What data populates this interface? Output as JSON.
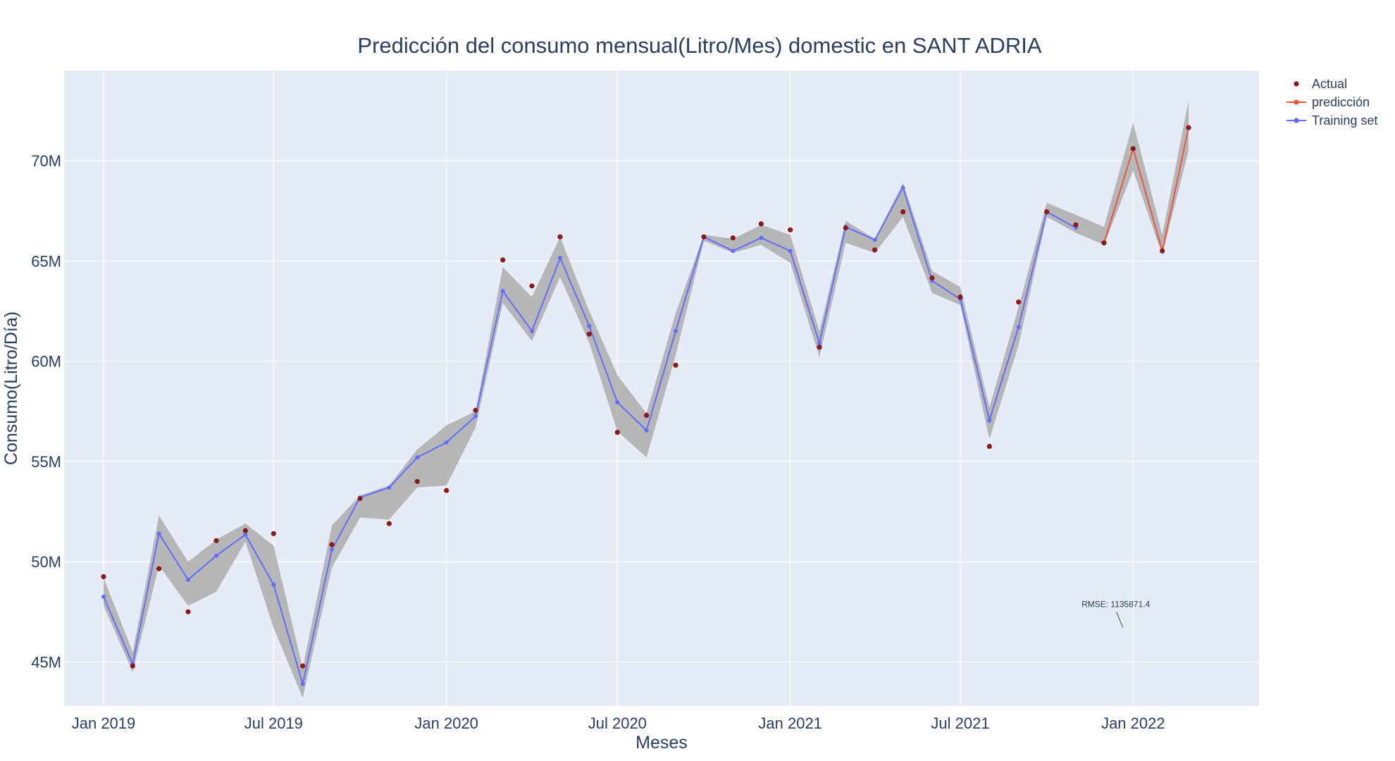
{
  "chart_data": {
    "type": "line",
    "title": "Predicción del consumo mensual(Litro/Mes) domestic en SANT ADRIA",
    "xlabel": "Meses",
    "ylabel": "Consumo(Litro/Día)",
    "x_tick_labels": [
      "Jan 2019",
      "Jul 2019",
      "Jan 2020",
      "Jul 2020",
      "Jan 2021",
      "Jul 2021",
      "Jan 2022"
    ],
    "y_tick_labels": [
      "45M",
      "50M",
      "55M",
      "60M",
      "65M",
      "70M"
    ],
    "y_ticks": [
      45000000,
      50000000,
      55000000,
      60000000,
      65000000,
      70000000
    ],
    "xlim": [
      "2018-11-20",
      "2022-05-15"
    ],
    "ylim": [
      42800000,
      74500000
    ],
    "grid": true,
    "legend_position": "top-right",
    "series": [
      {
        "name": "Actual",
        "mode": "markers",
        "color": "#8b1a1a",
        "x": [
          "2019-01-01",
          "2019-02-01",
          "2019-03-01",
          "2019-04-01",
          "2019-05-01",
          "2019-06-01",
          "2019-07-01",
          "2019-08-01",
          "2019-09-01",
          "2019-10-01",
          "2019-11-01",
          "2019-12-01",
          "2020-01-01",
          "2020-02-01",
          "2020-03-01",
          "2020-04-01",
          "2020-05-01",
          "2020-06-01",
          "2020-07-01",
          "2020-08-01",
          "2020-09-01",
          "2020-10-01",
          "2020-11-01",
          "2020-12-01",
          "2021-01-01",
          "2021-02-01",
          "2021-03-01",
          "2021-04-01",
          "2021-05-01",
          "2021-06-01",
          "2021-07-01",
          "2021-08-01",
          "2021-09-01",
          "2021-10-01",
          "2021-11-01",
          "2021-12-01",
          "2022-01-01",
          "2022-02-01",
          "2022-03-01"
        ],
        "y": [
          49250000,
          44800000,
          49650000,
          47500000,
          51050000,
          51550000,
          51400000,
          44800000,
          50850000,
          53150000,
          51900000,
          54000000,
          53550000,
          57550000,
          65050000,
          63750000,
          66200000,
          61350000,
          56450000,
          57300000,
          59800000,
          66200000,
          66150000,
          66850000,
          66550000,
          60700000,
          66650000,
          65550000,
          67450000,
          64150000,
          63200000,
          55750000,
          62950000,
          67450000,
          66800000,
          65900000,
          70600000,
          65500000,
          71650000
        ]
      },
      {
        "name": "predicción",
        "mode": "lines+markers",
        "color": "#ef553b",
        "x": [
          "2021-12-01",
          "2022-01-01",
          "2022-02-01",
          "2022-03-01"
        ],
        "y": [
          65900000,
          70600000,
          65500000,
          71650000
        ]
      },
      {
        "name": "Training set",
        "mode": "lines+markers",
        "color": "#636efa",
        "x": [
          "2019-01-01",
          "2019-02-01",
          "2019-03-01",
          "2019-04-01",
          "2019-05-01",
          "2019-06-01",
          "2019-07-01",
          "2019-08-01",
          "2019-09-01",
          "2019-10-01",
          "2019-11-01",
          "2019-12-01",
          "2020-01-01",
          "2020-02-01",
          "2020-03-01",
          "2020-04-01",
          "2020-05-01",
          "2020-06-01",
          "2020-07-01",
          "2020-08-01",
          "2020-09-01",
          "2020-10-01",
          "2020-11-01",
          "2020-12-01",
          "2021-01-01",
          "2021-02-01",
          "2021-03-01",
          "2021-04-01",
          "2021-05-01",
          "2021-06-01",
          "2021-07-01",
          "2021-08-01",
          "2021-09-01",
          "2021-10-01",
          "2021-11-01"
        ],
        "y": [
          48250000,
          44900000,
          51400000,
          49100000,
          50300000,
          51350000,
          48850000,
          43900000,
          50600000,
          53200000,
          53700000,
          55200000,
          55950000,
          57250000,
          63500000,
          61500000,
          65150000,
          61750000,
          57950000,
          56550000,
          61500000,
          66200000,
          65500000,
          66150000,
          65500000,
          60900000,
          66700000,
          66050000,
          68650000,
          64000000,
          63100000,
          57050000,
          61700000,
          67450000,
          66650000
        ]
      }
    ],
    "confidence_band": {
      "color": "#a9a9a9",
      "x": [
        "2019-01-01",
        "2019-02-01",
        "2019-03-01",
        "2019-04-01",
        "2019-05-01",
        "2019-06-01",
        "2019-07-01",
        "2019-08-01",
        "2019-09-01",
        "2019-10-01",
        "2019-11-01",
        "2019-12-01",
        "2020-01-01",
        "2020-02-01",
        "2020-03-01",
        "2020-04-01",
        "2020-05-01",
        "2020-06-01",
        "2020-07-01",
        "2020-08-01",
        "2020-09-01",
        "2020-10-01",
        "2020-11-01",
        "2020-12-01",
        "2021-01-01",
        "2021-02-01",
        "2021-03-01",
        "2021-04-01",
        "2021-05-01",
        "2021-06-01",
        "2021-07-01",
        "2021-08-01",
        "2021-09-01",
        "2021-10-01",
        "2021-11-01",
        "2021-12-01",
        "2022-01-01",
        "2022-02-01",
        "2022-03-01"
      ],
      "upper": [
        49200000,
        45500000,
        52300000,
        50000000,
        51100000,
        51900000,
        50800000,
        44700000,
        51800000,
        53300000,
        53800000,
        55600000,
        56800000,
        57500000,
        64700000,
        63200000,
        66200000,
        62500000,
        59300000,
        57400000,
        62400000,
        66300000,
        66100000,
        66800000,
        66300000,
        61500000,
        67000000,
        66100000,
        68900000,
        64500000,
        63700000,
        57700000,
        62700000,
        67900000,
        67300000,
        66700000,
        71900000,
        66300000,
        73000000
      ],
      "lower": [
        47800000,
        44500000,
        49800000,
        47800000,
        48500000,
        51000000,
        46700000,
        43200000,
        49700000,
        52200000,
        52100000,
        53700000,
        53800000,
        56700000,
        62900000,
        61000000,
        64200000,
        60900000,
        56500000,
        55200000,
        60300000,
        66000000,
        65400000,
        65800000,
        64900000,
        60200000,
        65900000,
        65400000,
        67200000,
        63400000,
        62800000,
        56100000,
        60800000,
        67200000,
        66400000,
        65800000,
        69500000,
        65300000,
        70500000
      ]
    },
    "annotations": [
      {
        "text": "RMSE: 1135871.4",
        "x": "2021-12-21",
        "y": 46300000
      }
    ]
  }
}
